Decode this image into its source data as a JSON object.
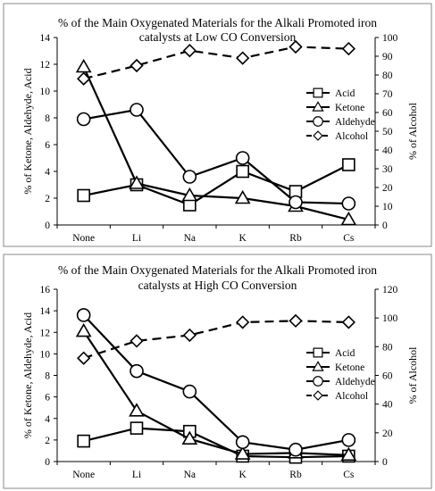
{
  "chart_data": [
    {
      "type": "line",
      "title_lines": [
        "% of the Main Oxygenated Materials for the Alkali Promoted iron",
        "catalysts at Low CO Conversion"
      ],
      "ylabel": "% of Ketone, Aldehyde, Acid",
      "ylabel_right": "% of Alcohol",
      "categories": [
        "None",
        "Li",
        "Na",
        "K",
        "Rb",
        "Cs"
      ],
      "ylim": [
        0,
        14
      ],
      "yticks": [
        "0",
        "2",
        "4",
        "6",
        "8",
        "10",
        "12",
        "14"
      ],
      "y2lim": [
        0,
        100
      ],
      "y2ticks": [
        "0",
        "10",
        "20",
        "30",
        "40",
        "50",
        "60",
        "70",
        "80",
        "90",
        "100"
      ],
      "series": [
        {
          "name": "Acid",
          "axis": "left",
          "marker": "square",
          "dash": false,
          "values": [
            2.2,
            3.0,
            1.5,
            4.0,
            2.5,
            4.5
          ]
        },
        {
          "name": "Ketone",
          "axis": "left",
          "marker": "triangle",
          "dash": false,
          "values": [
            11.8,
            3.1,
            2.2,
            2.0,
            1.4,
            0.4
          ]
        },
        {
          "name": "Aldehyde",
          "axis": "left",
          "marker": "circle",
          "dash": false,
          "values": [
            7.9,
            8.6,
            3.6,
            5.0,
            1.7,
            1.6
          ]
        },
        {
          "name": "Alcohol",
          "axis": "right",
          "marker": "diamond",
          "dash": true,
          "values": [
            78,
            85,
            93,
            89,
            95,
            94
          ]
        }
      ],
      "legend_labels": [
        "Acid",
        "Ketone",
        "Aldehyde",
        "Alcohol"
      ],
      "legend_position": "right"
    },
    {
      "type": "line",
      "title_lines": [
        "% of the Main Oxygenated Materials for the Alkali Promoted iron",
        "catalysts at High CO Conversion"
      ],
      "ylabel": "% of Ketone, Aldehyde, Acid",
      "ylabel_right": "% of Alcohol",
      "categories": [
        "None",
        "Li",
        "Na",
        "K",
        "Rb",
        "Cs"
      ],
      "ylim": [
        0,
        16
      ],
      "yticks": [
        "0",
        "2",
        "4",
        "6",
        "8",
        "10",
        "12",
        "14",
        "16"
      ],
      "y2lim": [
        0,
        120
      ],
      "y2ticks": [
        "0",
        "20",
        "40",
        "60",
        "80",
        "100",
        "120"
      ],
      "series": [
        {
          "name": "Acid",
          "axis": "left",
          "marker": "square",
          "dash": false,
          "values": [
            1.9,
            3.1,
            2.8,
            0.5,
            0.4,
            0.5
          ]
        },
        {
          "name": "Ketone",
          "axis": "left",
          "marker": "triangle",
          "dash": false,
          "values": [
            12.1,
            4.7,
            2.1,
            0.7,
            0.8,
            0.6
          ]
        },
        {
          "name": "Aldehyde",
          "axis": "left",
          "marker": "circle",
          "dash": false,
          "values": [
            13.6,
            8.4,
            6.5,
            1.8,
            1.1,
            2.0
          ]
        },
        {
          "name": "Alcohol",
          "axis": "right",
          "marker": "diamond",
          "dash": true,
          "values": [
            72,
            84,
            88,
            97,
            98,
            97
          ]
        }
      ],
      "legend_labels": [
        "Acid",
        "Ketone",
        "Aldehyde",
        "Alcohol"
      ],
      "legend_position": "right"
    }
  ]
}
